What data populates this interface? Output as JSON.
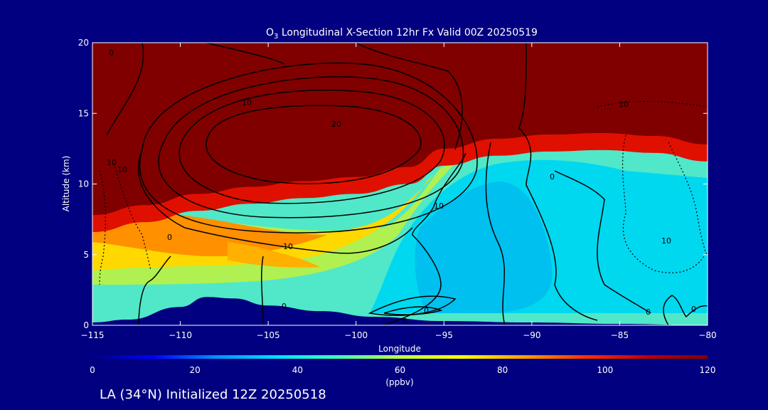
{
  "chart_data": {
    "type": "heatmap",
    "title_prefix": "O",
    "title_sub": "3",
    "title_rest": " Longitudinal X-Section 12hr  Fx Valid 00Z 20250519",
    "xlabel": "Longitude",
    "ylabel": "Altitude (km)",
    "xlim": [
      -115,
      -80
    ],
    "ylim": [
      0,
      20
    ],
    "x_ticks": [
      -115,
      -110,
      -105,
      -100,
      -95,
      -90,
      -85,
      -80
    ],
    "x_tick_labels": [
      "−115",
      "−110",
      "−105",
      "−100",
      "−95",
      "−90",
      "−85",
      "−80"
    ],
    "y_ticks": [
      0,
      5,
      10,
      15,
      20
    ],
    "y_tick_labels": [
      "0",
      "5",
      "10",
      "15",
      "20"
    ],
    "colorbar": {
      "min": 0,
      "max": 120,
      "unit": "(ppbv)",
      "ticks": [
        0,
        20,
        40,
        60,
        80,
        100,
        120
      ],
      "tick_labels": [
        "0",
        "20",
        "40",
        "60",
        "80",
        "100",
        "120"
      ],
      "colors": [
        "#000080",
        "#0000ff",
        "#0090ff",
        "#00e0ff",
        "#40ffb0",
        "#c0ff40",
        "#ffff00",
        "#ffa000",
        "#ff3000",
        "#c00000",
        "#800000"
      ]
    },
    "tropopause_height_km": [
      {
        "lon": -115,
        "z": 7.8
      },
      {
        "lon": -112,
        "z": 8.5
      },
      {
        "lon": -109,
        "z": 9.3
      },
      {
        "lon": -106,
        "z": 9.8
      },
      {
        "lon": -103,
        "z": 10.2
      },
      {
        "lon": -100,
        "z": 10.5
      },
      {
        "lon": -97,
        "z": 11.2
      },
      {
        "lon": -95,
        "z": 12.5
      },
      {
        "lon": -92,
        "z": 13.2
      },
      {
        "lon": -89,
        "z": 13.5
      },
      {
        "lon": -86,
        "z": 13.6
      },
      {
        "lon": -83,
        "z": 13.4
      },
      {
        "lon": -80,
        "z": 12.8
      }
    ],
    "surface_terrain_km": [
      {
        "lon": -115,
        "z": 0.2
      },
      {
        "lon": -113,
        "z": 0.4
      },
      {
        "lon": -110,
        "z": 1.3
      },
      {
        "lon": -108.5,
        "z": 2.0
      },
      {
        "lon": -107,
        "z": 1.9
      },
      {
        "lon": -105,
        "z": 1.4
      },
      {
        "lon": -102,
        "z": 1.0
      },
      {
        "lon": -99,
        "z": 0.6
      },
      {
        "lon": -95,
        "z": 0.3
      },
      {
        "lon": -90,
        "z": 0.2
      },
      {
        "lon": -85,
        "z": 0.1
      },
      {
        "lon": -80,
        "z": 0.0
      }
    ],
    "contour_labels": [
      "0",
      "10",
      "10",
      "20",
      "10",
      "0",
      "10",
      "0",
      "10",
      "10",
      "10",
      "0",
      "0",
      "0",
      "0",
      "0"
    ]
  },
  "footer": {
    "init_text": "LA (34°N) Initialized 12Z 20250518"
  }
}
